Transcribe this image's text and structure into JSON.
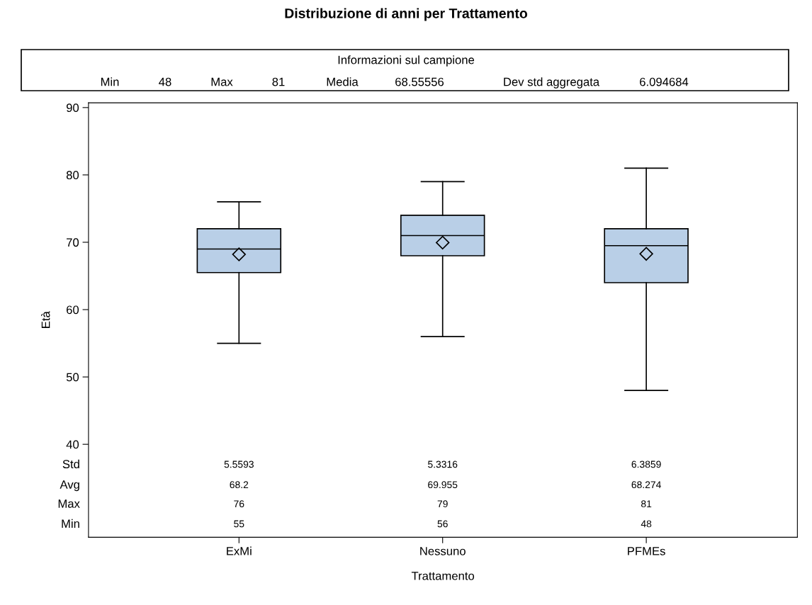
{
  "chart_data": {
    "type": "box",
    "title": "Distribuzione di anni per Trattamento",
    "subtitle": "Informazioni sul campione",
    "xlabel": "Trattamento",
    "ylabel": "Età",
    "categories": [
      "ExMi",
      "Nessuno",
      "PFMEs"
    ],
    "boxes": [
      {
        "low": 55,
        "q1": 65.5,
        "median": 69,
        "q3": 72,
        "high": 76,
        "mean": 68.2
      },
      {
        "low": 56,
        "q1": 68,
        "median": 71,
        "q3": 74,
        "high": 79,
        "mean": 69.955
      },
      {
        "low": 48,
        "q1": 64,
        "median": 69.5,
        "q3": 72,
        "high": 81,
        "mean": 68.274
      }
    ],
    "color": "#b9cfe7",
    "marker": "diamond",
    "ylim": [
      26.2,
      90.7
    ],
    "yticks": [
      40,
      50,
      60,
      70,
      80,
      90
    ],
    "grid": false,
    "legend": false,
    "annotations": [
      "Min",
      "48",
      "Max",
      "81",
      "Media",
      "68.55556",
      "Dev std aggregata",
      "6.094684",
      "Std",
      "5.5593",
      "5.3316",
      "6.3859",
      "Avg",
      "68.2",
      "69.955",
      "68.274",
      "Max",
      "76",
      "79",
      "81",
      "Min",
      "55",
      "56",
      "48"
    ]
  }
}
